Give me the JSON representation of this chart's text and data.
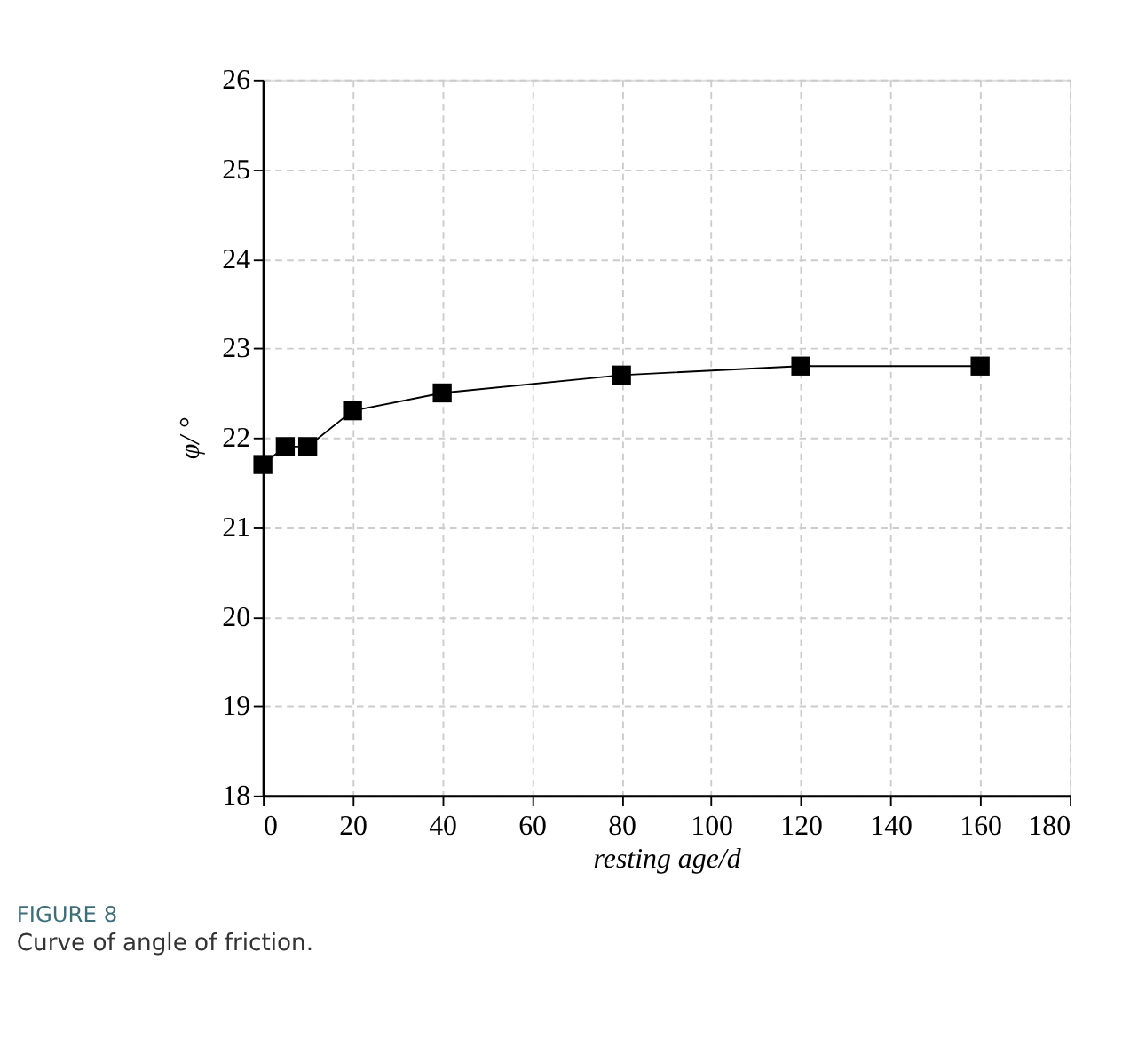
{
  "chart_data": {
    "type": "line",
    "xlabel": "resting age/d",
    "ylabel": "φ/ °",
    "x": [
      0,
      5,
      10,
      20,
      40,
      80,
      120,
      160
    ],
    "series": [
      {
        "color": "#000000",
        "values": [
          21.7,
          21.9,
          21.9,
          22.3,
          22.5,
          22.7,
          22.8,
          22.8
        ]
      }
    ],
    "xlim": [
      0,
      180
    ],
    "xticks": [
      0,
      20,
      40,
      60,
      80,
      100,
      120,
      140,
      160,
      180
    ],
    "ylim": [
      18,
      26
    ],
    "yticks": [
      18,
      19,
      20,
      21,
      22,
      23,
      24,
      25,
      26
    ],
    "grid": true,
    "marker": "square",
    "line_style": "solid",
    "annotations": [
      "FIGURE 8",
      "Curve of angle of friction."
    ]
  }
}
